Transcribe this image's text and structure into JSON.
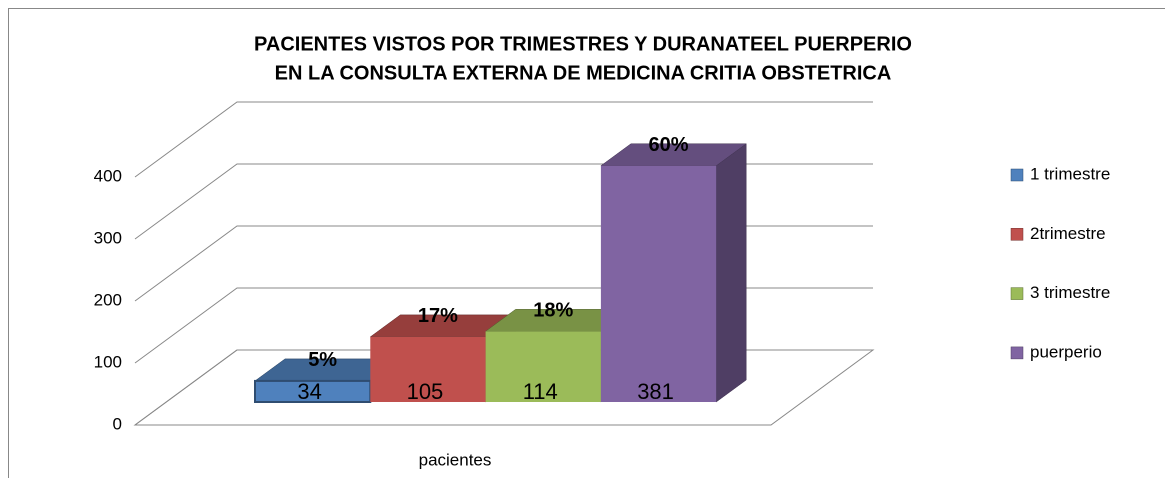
{
  "chart_data": {
    "type": "bar3d",
    "title": [
      "PACIENTES VISTOS  POR TRIMESTRES Y DURANATEEL PUERPERIO",
      "EN LA CONSULTA EXTERNA DE MEDICINA CRITIA OBSTETRICA"
    ],
    "categories": [
      "pacientes"
    ],
    "series": [
      {
        "name": "1 trimestre",
        "color": "#4f81bd",
        "values": [
          34
        ],
        "percent_labels": [
          "5%"
        ]
      },
      {
        "name": "2trimestre",
        "color": "#c0504d",
        "values": [
          105
        ],
        "percent_labels": [
          "17%"
        ]
      },
      {
        "name": "3 trimestre",
        "color": "#9bbb59",
        "values": [
          114
        ],
        "percent_labels": [
          "18%"
        ]
      },
      {
        "name": "puerperio",
        "color": "#8064a2",
        "values": [
          381
        ],
        "percent_labels": [
          "60%"
        ]
      }
    ],
    "ylim": [
      0,
      400
    ],
    "yticks": [
      0,
      100,
      200,
      300,
      400
    ],
    "grid": true,
    "legend": "right"
  }
}
